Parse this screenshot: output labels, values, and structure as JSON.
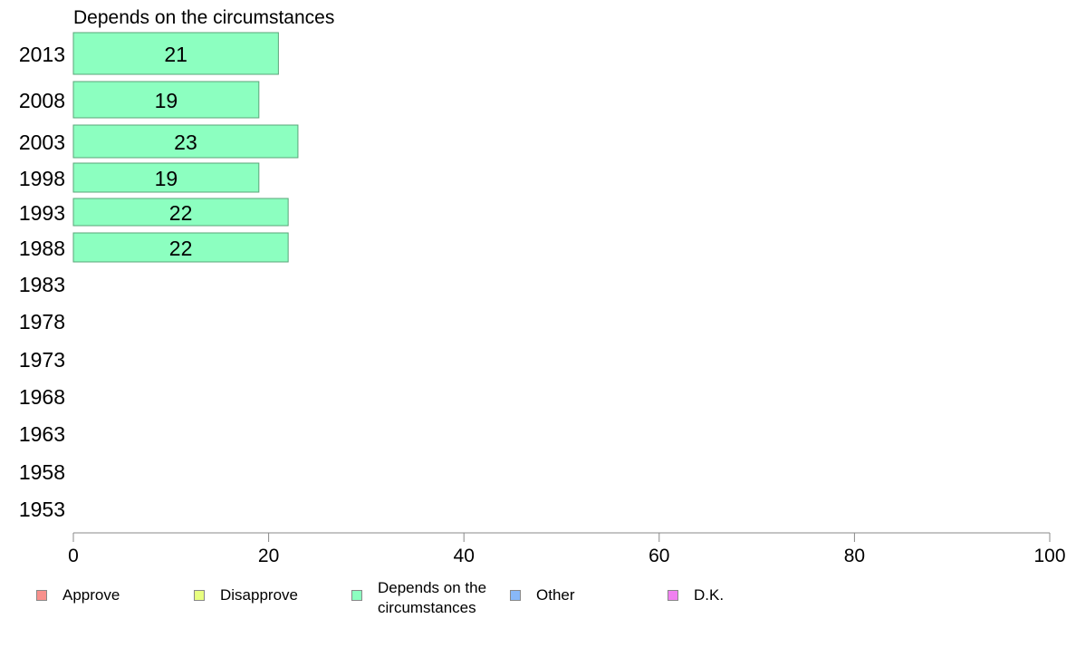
{
  "chart_data": {
    "type": "bar",
    "orientation": "horizontal",
    "title": "Depends on the circumstances",
    "categories": [
      "2013",
      "2008",
      "2003",
      "1998",
      "1993",
      "1988",
      "1983",
      "1978",
      "1973",
      "1968",
      "1963",
      "1958",
      "1953"
    ],
    "series": [
      {
        "name": "Depends on the circumstances",
        "color": "#8cffc0",
        "values": [
          21,
          19,
          23,
          19,
          22,
          22,
          null,
          null,
          null,
          null,
          null,
          null,
          null
        ],
        "labels": [
          "21",
          "19",
          "23",
          "19",
          "22",
          "22",
          "",
          "",
          "",
          "",
          "",
          "",
          ""
        ]
      }
    ],
    "xlim": [
      0,
      100
    ],
    "xticks": [
      "0",
      "20",
      "40",
      "60",
      "80",
      "100"
    ],
    "grid": false,
    "legend_position": "bottom",
    "legend": [
      {
        "label": "Approve",
        "color": "#f8908c"
      },
      {
        "label": "Disapprove",
        "color": "#e8ff80"
      },
      {
        "label": "Depends on the circumstances",
        "color": "#8cffc0"
      },
      {
        "label": "Other",
        "color": "#88b8f8"
      },
      {
        "label": "D.K.",
        "color": "#f080f0"
      }
    ]
  }
}
